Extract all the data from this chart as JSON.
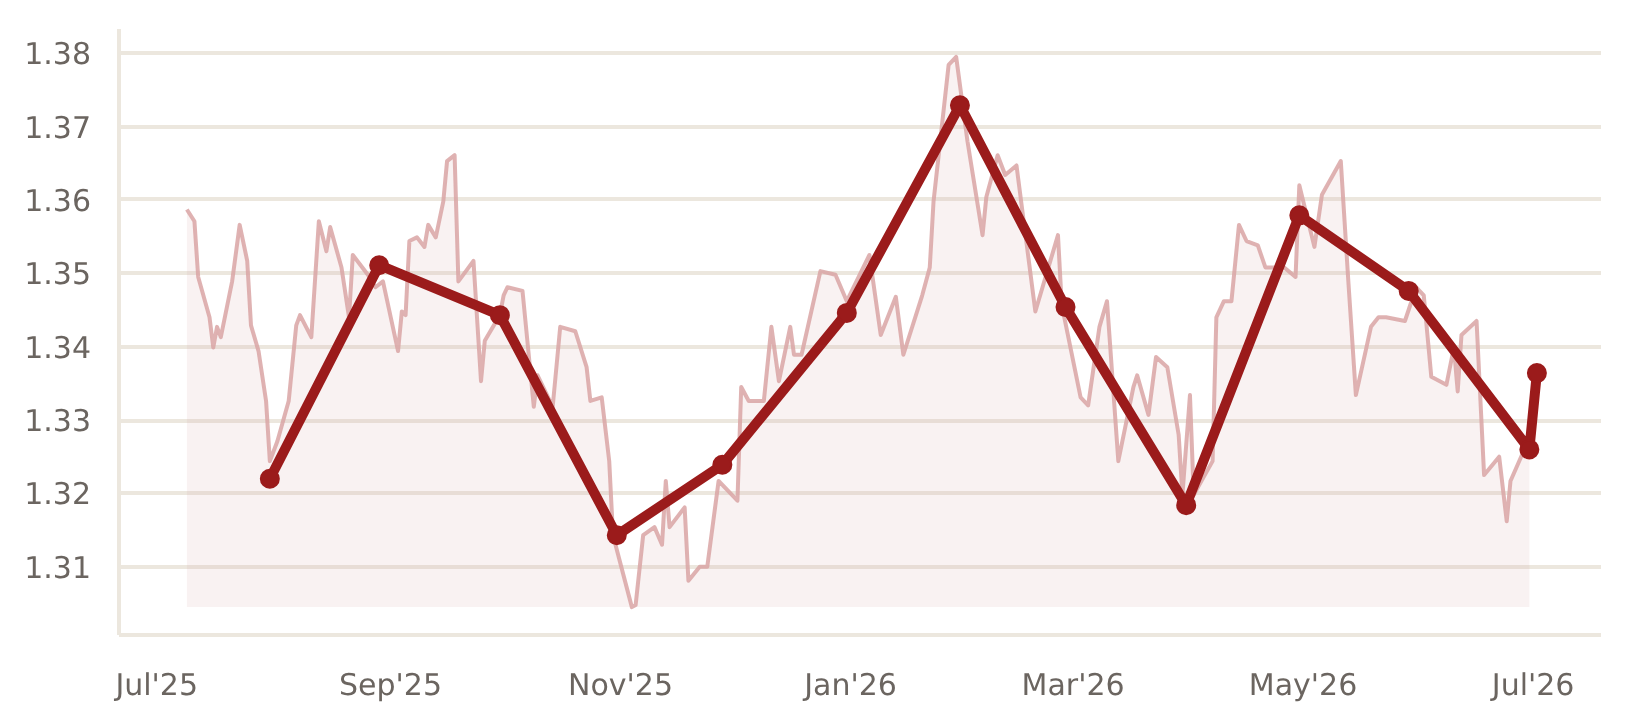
{
  "chart_data": {
    "type": "line",
    "grid": "y",
    "xlim": [
      "2025-06-21",
      "2026-07-19"
    ],
    "ylim": [
      1.3007,
      1.3833
    ],
    "yticks": [
      1.31,
      1.32,
      1.33,
      1.34,
      1.35,
      1.36,
      1.37,
      1.38
    ],
    "xticks": [
      {
        "value": "2025-07-01",
        "label": "Jul'25"
      },
      {
        "value": "2025-09-01",
        "label": "Sep'25"
      },
      {
        "value": "2025-11-01",
        "label": "Nov'25"
      },
      {
        "value": "2026-01-01",
        "label": "Jan'26"
      },
      {
        "value": "2026-03-01",
        "label": "Mar'26"
      },
      {
        "value": "2026-05-01",
        "label": "May'26"
      },
      {
        "value": "2026-07-01",
        "label": "Jul'26"
      }
    ],
    "series": [
      {
        "type": "area",
        "color": "#d9a5a5",
        "x": [
          "2025-07-09",
          "2025-07-11",
          "2025-07-12",
          "2025-07-15",
          "2025-07-16",
          "2025-07-17",
          "2025-07-18",
          "2025-07-21",
          "2025-07-23",
          "2025-07-25",
          "2025-07-26",
          "2025-07-28",
          "2025-07-30",
          "2025-07-31",
          "2025-08-02",
          "2025-08-05",
          "2025-08-07",
          "2025-08-08",
          "2025-08-11",
          "2025-08-13",
          "2025-08-15",
          "2025-08-16",
          "2025-08-19",
          "2025-08-21",
          "2025-08-22",
          "2025-08-26",
          "2025-08-28",
          "2025-08-30",
          "2025-09-03",
          "2025-09-04",
          "2025-09-05",
          "2025-09-06",
          "2025-09-08",
          "2025-09-10",
          "2025-09-11",
          "2025-09-13",
          "2025-09-15",
          "2025-09-16",
          "2025-09-18",
          "2025-09-19",
          "2025-09-23",
          "2025-09-25",
          "2025-09-26",
          "2025-09-30",
          "2025-10-01",
          "2025-10-02",
          "2025-10-06",
          "2025-10-09",
          "2025-10-10",
          "2025-10-14",
          "2025-10-16",
          "2025-10-20",
          "2025-10-23",
          "2025-10-24",
          "2025-10-27",
          "2025-10-29",
          "2025-10-30",
          "2025-11-04",
          "2025-11-05",
          "2025-11-07",
          "2025-11-10",
          "2025-11-12",
          "2025-11-13",
          "2025-11-14",
          "2025-11-18",
          "2025-11-19",
          "2025-11-22",
          "2025-11-24",
          "2025-11-27",
          "2025-12-02",
          "2025-12-03",
          "2025-12-05",
          "2025-12-09",
          "2025-12-11",
          "2025-12-13",
          "2025-12-16",
          "2025-12-17",
          "2025-12-19",
          "2025-12-24",
          "2025-12-28",
          "2025-12-31",
          "2026-01-06",
          "2026-01-09",
          "2026-01-13",
          "2026-01-15",
          "2026-01-20",
          "2026-01-22",
          "2026-01-23",
          "2026-01-27",
          "2026-01-29",
          "2026-02-01",
          "2026-02-05",
          "2026-02-06",
          "2026-02-09",
          "2026-02-11",
          "2026-02-14",
          "2026-02-19",
          "2026-02-25",
          "2026-02-26",
          "2026-03-03",
          "2026-03-05",
          "2026-03-08",
          "2026-03-10",
          "2026-03-13",
          "2026-03-17",
          "2026-03-18",
          "2026-03-21",
          "2026-03-23",
          "2026-03-26",
          "2026-03-29",
          "2026-03-30",
          "2026-04-01",
          "2026-04-02",
          "2026-04-07",
          "2026-04-08",
          "2026-04-10",
          "2026-04-12",
          "2026-04-14",
          "2026-04-16",
          "2026-04-19",
          "2026-04-21",
          "2026-04-26",
          "2026-04-29",
          "2026-04-30",
          "2026-05-04",
          "2026-05-06",
          "2026-05-11",
          "2026-05-13",
          "2026-05-15",
          "2026-05-19",
          "2026-05-21",
          "2026-05-23",
          "2026-05-28",
          "2026-05-31",
          "2026-06-02",
          "2026-06-04",
          "2026-06-08",
          "2026-06-10",
          "2026-06-11",
          "2026-06-12",
          "2026-06-16",
          "2026-06-18",
          "2026-06-22",
          "2026-06-24",
          "2026-06-25",
          "2026-06-28",
          "2026-06-30"
        ],
        "values": [
          1.3587,
          1.3571,
          1.3495,
          1.344,
          1.3399,
          1.3427,
          1.3413,
          1.3489,
          1.3566,
          1.3517,
          1.3429,
          1.3394,
          1.3326,
          1.3244,
          1.3271,
          1.3326,
          1.3429,
          1.3443,
          1.3413,
          1.3571,
          1.353,
          1.3563,
          1.3508,
          1.344,
          1.3525,
          1.3498,
          1.3481,
          1.3489,
          1.3394,
          1.3448,
          1.3443,
          1.3544,
          1.3549,
          1.3536,
          1.3566,
          1.3549,
          1.3598,
          1.3653,
          1.3661,
          1.3489,
          1.3517,
          1.3353,
          1.3408,
          1.3443,
          1.347,
          1.3481,
          1.3476,
          1.3318,
          1.3361,
          1.3318,
          1.3427,
          1.3421,
          1.3372,
          1.3326,
          1.3331,
          1.3244,
          1.3143,
          1.3045,
          1.3048,
          1.3143,
          1.3154,
          1.313,
          1.3217,
          1.3154,
          1.3181,
          1.3081,
          1.31,
          1.31,
          1.3217,
          1.319,
          1.3345,
          1.3326,
          1.3326,
          1.3427,
          1.3353,
          1.3427,
          1.3389,
          1.3389,
          1.3503,
          1.3498,
          1.3462,
          1.3525,
          1.3416,
          1.3468,
          1.3389,
          1.347,
          1.3508,
          1.3598,
          1.3784,
          1.3795,
          1.368,
          1.3552,
          1.3604,
          1.3661,
          1.3634,
          1.3647,
          1.3448,
          1.3552,
          1.3457,
          1.3331,
          1.332,
          1.3427,
          1.3462,
          1.3244,
          1.3345,
          1.3361,
          1.3307,
          1.3386,
          1.3372,
          1.328,
          1.3198,
          1.3334,
          1.3198,
          1.3244,
          1.344,
          1.3462,
          1.3462,
          1.3566,
          1.3544,
          1.3538,
          1.3508,
          1.3508,
          1.3495,
          1.362,
          1.3536,
          1.3607,
          1.3653,
          1.3489,
          1.3334,
          1.3427,
          1.344,
          1.344,
          1.3435,
          1.3481,
          1.347,
          1.3359,
          1.3348,
          1.3399,
          1.3339,
          1.3416,
          1.3435,
          1.3225,
          1.325,
          1.3162,
          1.3217,
          1.3252,
          1.3266
        ]
      },
      {
        "color": "#9b1b1b",
        "marker": "circle",
        "line_style": "solid",
        "x": [
          "2025-07-31",
          "2025-08-29",
          "2025-09-30",
          "2025-10-31",
          "2025-11-28",
          "2025-12-31",
          "2026-01-30",
          "2026-02-27",
          "2026-03-31",
          "2026-04-30",
          "2026-05-29",
          "2026-06-30",
          "2026-07-02"
        ],
        "values": [
          1.322,
          1.3511,
          1.3443,
          1.3143,
          1.3239,
          1.3446,
          1.3729,
          1.3454,
          1.3184,
          1.3579,
          1.3476,
          1.326,
          1.3364
        ]
      }
    ]
  }
}
